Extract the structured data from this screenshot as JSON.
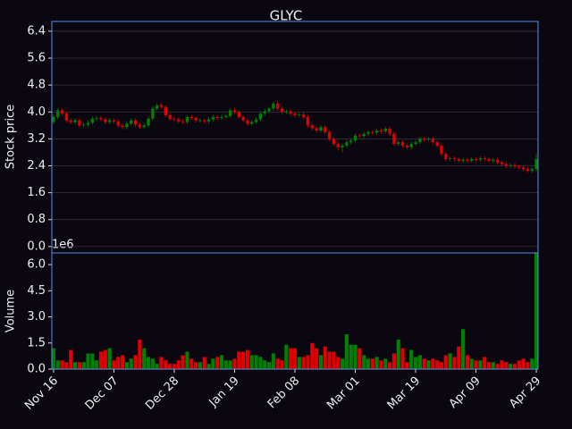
{
  "chart_data": [
    {
      "type": "candlestick",
      "title": "GLYC",
      "ylabel": "Stock price",
      "up_color": "#008000",
      "down_color": "#e00000",
      "grid": true,
      "ylim": [
        -0.19,
        6.69
      ],
      "yticks": [
        {
          "value": 0,
          "label": "0.0"
        },
        0.8,
        1.6,
        2.4,
        3.2,
        {
          "value": 4,
          "label": "4.0"
        },
        4.8,
        5.6,
        6.4
      ],
      "open": [
        3.7,
        3.85,
        4.05,
        3.95,
        3.75,
        3.7,
        3.75,
        3.6,
        3.62,
        3.68,
        3.8,
        3.82,
        3.78,
        3.7,
        3.75,
        3.72,
        3.6,
        3.55,
        3.65,
        3.75,
        3.62,
        3.55,
        3.6,
        3.8,
        4.1,
        4.2,
        4.15,
        3.9,
        3.8,
        3.78,
        3.72,
        3.7,
        3.85,
        3.82,
        3.75,
        3.75,
        3.72,
        3.78,
        3.85,
        3.82,
        3.85,
        3.88,
        4.05,
        4.0,
        3.85,
        3.75,
        3.65,
        3.7,
        3.78,
        3.95,
        4.02,
        4.1,
        4.25,
        4.1,
        4.0,
        4.02,
        3.95,
        3.9,
        3.92,
        3.85,
        3.6,
        3.52,
        3.45,
        3.55,
        3.4,
        3.2,
        3.05,
        2.95,
        3.0,
        3.1,
        3.15,
        3.3,
        3.28,
        3.35,
        3.4,
        3.38,
        3.45,
        3.42,
        3.5,
        3.35,
        3.05,
        3.1,
        3.0,
        2.95,
        3.05,
        3.1,
        3.2,
        3.18,
        3.2,
        3.1,
        3.0,
        2.75,
        2.6,
        2.62,
        2.6,
        2.55,
        2.58,
        2.55,
        2.6,
        2.58,
        2.62,
        2.6,
        2.55,
        2.58,
        2.5,
        2.45,
        2.4,
        2.42,
        2.38,
        2.35,
        2.3,
        2.25,
        2.3
      ],
      "high": [
        3.91,
        4.11,
        4.11,
        4.01,
        3.81,
        3.81,
        3.81,
        3.68,
        3.74,
        3.86,
        3.88,
        3.88,
        3.84,
        3.81,
        3.81,
        3.78,
        3.66,
        3.71,
        3.81,
        3.81,
        3.68,
        3.66,
        3.86,
        4.16,
        4.26,
        4.26,
        4.21,
        3.96,
        3.86,
        3.84,
        3.78,
        3.91,
        3.91,
        3.88,
        3.81,
        3.81,
        3.84,
        3.91,
        3.91,
        3.91,
        3.94,
        4.11,
        4.11,
        4.06,
        3.91,
        3.81,
        3.76,
        3.84,
        4.01,
        4.08,
        4.16,
        4.31,
        4.31,
        4.16,
        4.08,
        4.08,
        4.01,
        3.98,
        3.98,
        3.91,
        3.66,
        3.58,
        3.61,
        3.61,
        3.46,
        3.26,
        3.11,
        3.06,
        3.16,
        3.21,
        3.36,
        3.36,
        3.41,
        3.46,
        3.46,
        3.51,
        3.51,
        3.56,
        3.56,
        3.41,
        3.16,
        3.16,
        3.06,
        3.11,
        3.16,
        3.26,
        3.26,
        3.26,
        3.26,
        3.16,
        3.06,
        2.81,
        2.68,
        2.68,
        2.66,
        2.64,
        2.64,
        2.66,
        2.66,
        2.68,
        2.68,
        2.66,
        2.64,
        2.64,
        2.56,
        2.51,
        2.48,
        2.48,
        2.44,
        2.41,
        2.36,
        2.36,
        2.76
      ],
      "low": [
        3.64,
        3.79,
        3.89,
        3.69,
        3.64,
        3.64,
        3.54,
        3.54,
        3.56,
        3.62,
        3.74,
        3.72,
        3.64,
        3.64,
        3.66,
        3.54,
        3.49,
        3.49,
        3.59,
        3.56,
        3.49,
        3.49,
        3.54,
        3.74,
        4.04,
        4.09,
        3.84,
        3.74,
        3.72,
        3.66,
        3.64,
        3.64,
        3.76,
        3.69,
        3.69,
        3.66,
        3.66,
        3.72,
        3.76,
        3.76,
        3.79,
        3.82,
        3.94,
        3.79,
        3.69,
        3.59,
        3.59,
        3.64,
        3.72,
        3.89,
        3.96,
        4.04,
        4.04,
        3.94,
        3.94,
        3.89,
        3.84,
        3.84,
        3.79,
        3.54,
        3.46,
        3.39,
        3.39,
        3.34,
        3.14,
        2.99,
        2.85,
        2.8,
        2.94,
        3.04,
        3.09,
        3.22,
        3.22,
        3.29,
        3.32,
        3.32,
        3.36,
        3.36,
        3.29,
        2.99,
        2.99,
        2.94,
        2.89,
        2.89,
        2.99,
        3.04,
        3.12,
        3.12,
        3.04,
        2.94,
        2.69,
        2.54,
        2.54,
        2.54,
        2.49,
        2.49,
        2.49,
        2.49,
        2.52,
        2.52,
        2.54,
        2.49,
        2.49,
        2.44,
        2.39,
        2.34,
        2.34,
        2.32,
        2.29,
        2.24,
        2.19,
        2.19,
        2.24
      ],
      "close": [
        3.85,
        4.05,
        3.95,
        3.75,
        3.7,
        3.75,
        3.6,
        3.62,
        3.68,
        3.8,
        3.82,
        3.78,
        3.7,
        3.75,
        3.72,
        3.6,
        3.55,
        3.65,
        3.75,
        3.62,
        3.55,
        3.6,
        3.8,
        4.1,
        4.2,
        4.15,
        3.9,
        3.8,
        3.78,
        3.72,
        3.7,
        3.85,
        3.82,
        3.75,
        3.75,
        3.72,
        3.78,
        3.85,
        3.82,
        3.85,
        3.88,
        4.05,
        4.0,
        3.85,
        3.75,
        3.65,
        3.7,
        3.78,
        3.95,
        4.02,
        4.1,
        4.25,
        4.1,
        4.0,
        4.02,
        3.95,
        3.9,
        3.92,
        3.85,
        3.6,
        3.52,
        3.45,
        3.55,
        3.4,
        3.2,
        3.05,
        2.95,
        3.0,
        3.1,
        3.15,
        3.3,
        3.28,
        3.35,
        3.4,
        3.38,
        3.45,
        3.42,
        3.5,
        3.35,
        3.05,
        3.1,
        3.0,
        2.95,
        3.05,
        3.1,
        3.2,
        3.18,
        3.2,
        3.1,
        3.0,
        2.75,
        2.6,
        2.62,
        2.6,
        2.55,
        2.58,
        2.55,
        2.6,
        2.58,
        2.62,
        2.6,
        2.55,
        2.58,
        2.5,
        2.45,
        2.4,
        2.42,
        2.38,
        2.35,
        2.3,
        2.25,
        2.3,
        2.6
      ]
    },
    {
      "type": "bar",
      "ylabel": "Volume",
      "offset_label": "1e6",
      "ylim": [
        0,
        6.67
      ],
      "yticks": [
        {
          "value": 0,
          "label": "0.0"
        },
        1.5,
        {
          "value": 3,
          "label": "3.0"
        },
        4.5,
        {
          "value": 6,
          "label": "6.0"
        }
      ],
      "categories": [
        "Nov 16",
        null,
        null,
        null,
        null,
        null,
        null,
        null,
        null,
        null,
        null,
        null,
        null,
        null,
        "Dec 07",
        null,
        null,
        null,
        null,
        null,
        null,
        null,
        null,
        null,
        null,
        null,
        null,
        null,
        "Dec 28",
        null,
        null,
        null,
        null,
        null,
        null,
        null,
        null,
        null,
        null,
        null,
        null,
        null,
        "Jan 19",
        null,
        null,
        null,
        null,
        null,
        null,
        null,
        null,
        null,
        null,
        null,
        null,
        null,
        "Feb 08",
        null,
        null,
        null,
        null,
        null,
        null,
        null,
        null,
        null,
        null,
        null,
        null,
        null,
        "Mar 01",
        null,
        null,
        null,
        null,
        null,
        null,
        null,
        null,
        null,
        null,
        null,
        null,
        null,
        "Mar 19",
        null,
        null,
        null,
        null,
        null,
        null,
        null,
        null,
        null,
        null,
        null,
        null,
        null,
        "Apr 09",
        null,
        null,
        null,
        null,
        null,
        null,
        null,
        null,
        null,
        null,
        null,
        null,
        null,
        "Apr 29"
      ],
      "values": [
        1.2,
        0.5,
        0.5,
        0.4,
        1.1,
        0.4,
        0.4,
        0.4,
        0.9,
        0.9,
        0.5,
        1.0,
        1.1,
        1.2,
        0.5,
        0.7,
        0.8,
        0.4,
        0.6,
        0.8,
        1.7,
        1.2,
        0.7,
        0.6,
        0.3,
        0.7,
        0.5,
        0.3,
        0.3,
        0.5,
        0.8,
        1.0,
        0.6,
        0.4,
        0.4,
        0.7,
        0.3,
        0.6,
        0.7,
        0.8,
        0.5,
        0.5,
        0.6,
        1.0,
        1.0,
        1.1,
        0.8,
        0.8,
        0.7,
        0.5,
        0.4,
        0.9,
        0.6,
        0.5,
        1.4,
        1.2,
        1.2,
        0.7,
        0.7,
        0.8,
        1.5,
        1.2,
        0.8,
        1.3,
        1.0,
        1.0,
        0.7,
        0.6,
        2.0,
        1.4,
        1.4,
        1.2,
        0.8,
        0.6,
        0.6,
        0.7,
        0.5,
        0.6,
        0.4,
        0.9,
        1.7,
        1.2,
        0.4,
        1.1,
        0.7,
        0.8,
        0.6,
        0.5,
        0.6,
        0.5,
        0.4,
        0.8,
        0.9,
        0.7,
        1.3,
        2.3,
        0.8,
        0.6,
        0.5,
        0.5,
        0.7,
        0.4,
        0.4,
        0.3,
        0.5,
        0.4,
        0.3,
        0.3,
        0.5,
        0.6,
        0.4,
        0.6,
        6.7
      ]
    }
  ]
}
